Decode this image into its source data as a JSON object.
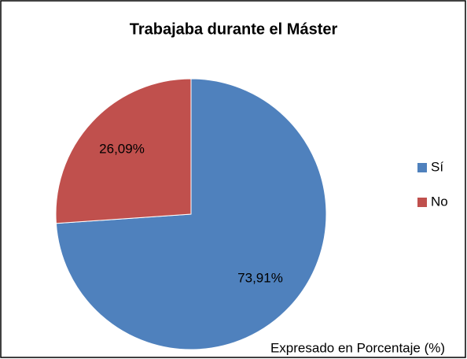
{
  "chart_data": {
    "type": "pie",
    "title": "Trabajaba durante el Máster",
    "categories": [
      "Sí",
      "No"
    ],
    "values": [
      73.91,
      26.09
    ],
    "value_labels": [
      "73,91%",
      "26,09%"
    ],
    "colors": [
      "#4f81bd",
      "#c0504d"
    ],
    "legend": "right",
    "annotation": "Expresado en Porcentaje (%)"
  }
}
